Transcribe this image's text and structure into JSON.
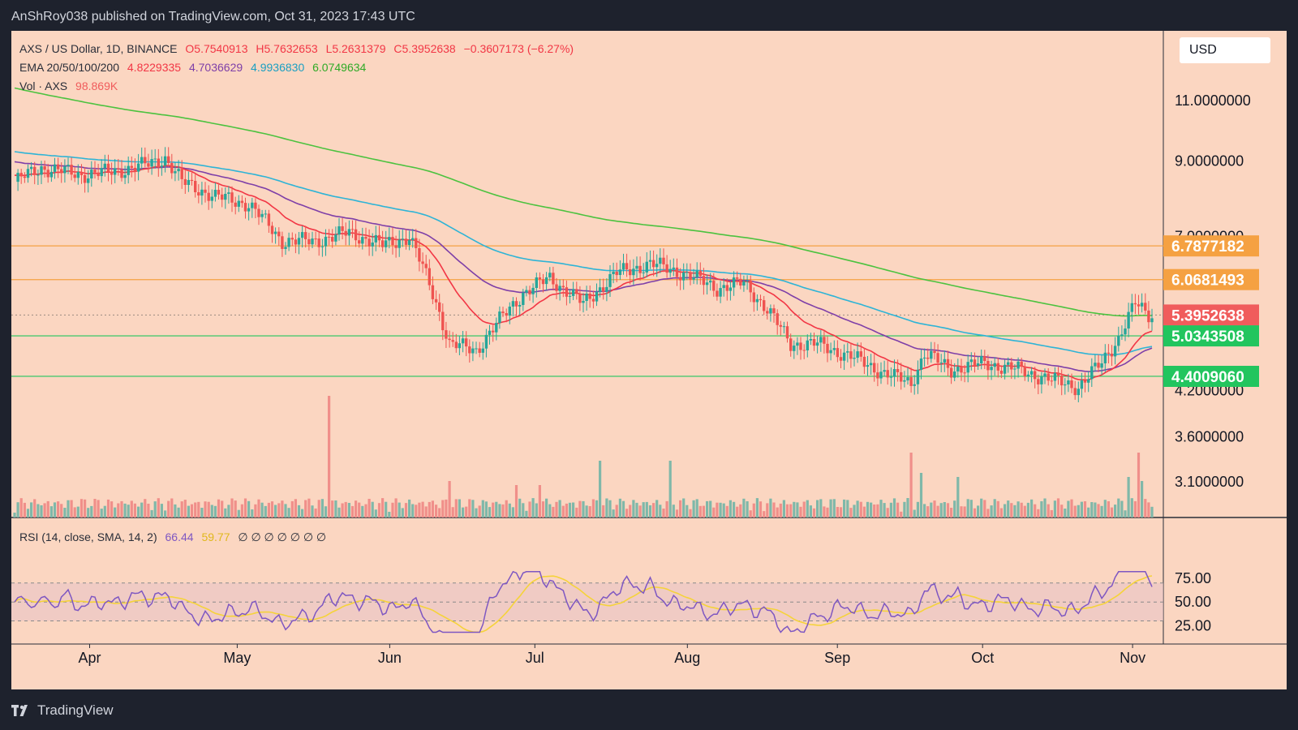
{
  "header": {
    "published_by": "AnShRoy038 published on TradingView.com, Oct 31, 2023 17:43 UTC"
  },
  "footer": {
    "brand": "TradingView"
  },
  "legend": {
    "symbol": "AXS / US Dollar, 1D, BINANCE",
    "open": "O5.7540913",
    "high": "H5.7632653",
    "low": "L5.2631379",
    "close": "C5.3952638",
    "change": "−0.3607173 (−6.27%)",
    "ema_label": "EMA 20/50/100/200",
    "ema20": "4.8229335",
    "ema50": "4.7036629",
    "ema100": "4.9936830",
    "ema200": "6.0749634",
    "vol_label": "Vol · AXS",
    "vol_value": "98.869K",
    "rsi_label": "RSI (14, close, SMA, 14, 2)",
    "rsi_value": "66.44",
    "rsi_sma_value": "59.77",
    "rsi_extra": "∅ ∅ ∅ ∅ ∅ ∅ ∅"
  },
  "currency": "USD",
  "colors": {
    "background": "#fbd6c1",
    "up": "#26a69a",
    "down": "#ef5350",
    "ema20": "#f23645",
    "ema50": "#7e3fa8",
    "ema100": "#2eb4d6",
    "ema200": "#4cc23f",
    "rsi": "#7e57c2",
    "rsi_sma": "#f5d33a"
  },
  "chart_data": {
    "type": "candlestick",
    "x_ticks": [
      "Apr",
      "May",
      "Jun",
      "Jul",
      "Aug",
      "Sep",
      "Oct",
      "Nov"
    ],
    "y_ticks": [
      "11.0000000",
      "9.0000000",
      "7.0000000",
      "4.2000000",
      "3.6000000",
      "3.1000000"
    ],
    "scale": "log",
    "price_tags": [
      {
        "label": "6.7877182",
        "value": 6.7877182,
        "color": "#f5a142"
      },
      {
        "label": "6.0681493",
        "value": 6.0681493,
        "color": "#f5a142"
      },
      {
        "label": "5.3952638",
        "value": 5.3952638,
        "color": "#f05c5c"
      },
      {
        "label": "5.0343508",
        "value": 5.0343508,
        "color": "#22c55e"
      },
      {
        "label": "4.4009060",
        "value": 4.400906,
        "color": "#22c55e"
      }
    ],
    "horizontal_lines": [
      {
        "value": 6.7877182,
        "color": "#f5a142"
      },
      {
        "value": 6.0681493,
        "color": "#f5a142"
      },
      {
        "value": 5.0343508,
        "color": "#22c55e"
      },
      {
        "value": 4.400906,
        "color": "#22c55e"
      }
    ],
    "price_keypoints": [
      [
        0,
        8.4
      ],
      [
        8,
        8.8
      ],
      [
        20,
        8.6
      ],
      [
        30,
        8.7
      ],
      [
        40,
        8.9
      ],
      [
        45,
        9.1
      ],
      [
        50,
        8.4
      ],
      [
        60,
        8.0
      ],
      [
        70,
        7.8
      ],
      [
        80,
        6.9
      ],
      [
        90,
        6.9
      ],
      [
        100,
        7.1
      ],
      [
        110,
        6.8
      ],
      [
        118,
        7.0
      ],
      [
        125,
        5.8
      ],
      [
        130,
        4.9
      ],
      [
        138,
        4.8
      ],
      [
        145,
        5.3
      ],
      [
        152,
        5.8
      ],
      [
        160,
        6.1
      ],
      [
        170,
        5.6
      ],
      [
        180,
        6.2
      ],
      [
        190,
        6.4
      ],
      [
        200,
        6.2
      ],
      [
        210,
        5.9
      ],
      [
        218,
        6.0
      ],
      [
        225,
        5.5
      ],
      [
        232,
        4.9
      ],
      [
        240,
        4.9
      ],
      [
        250,
        4.7
      ],
      [
        260,
        4.45
      ],
      [
        268,
        4.3
      ],
      [
        272,
        4.75
      ],
      [
        280,
        4.5
      ],
      [
        290,
        4.6
      ],
      [
        300,
        4.5
      ],
      [
        310,
        4.35
      ],
      [
        318,
        4.25
      ],
      [
        325,
        4.6
      ],
      [
        330,
        5.0
      ],
      [
        335,
        5.6
      ],
      [
        339,
        5.4
      ]
    ],
    "rsi_ticks": [
      "75.00",
      "50.00",
      "25.00"
    ]
  }
}
